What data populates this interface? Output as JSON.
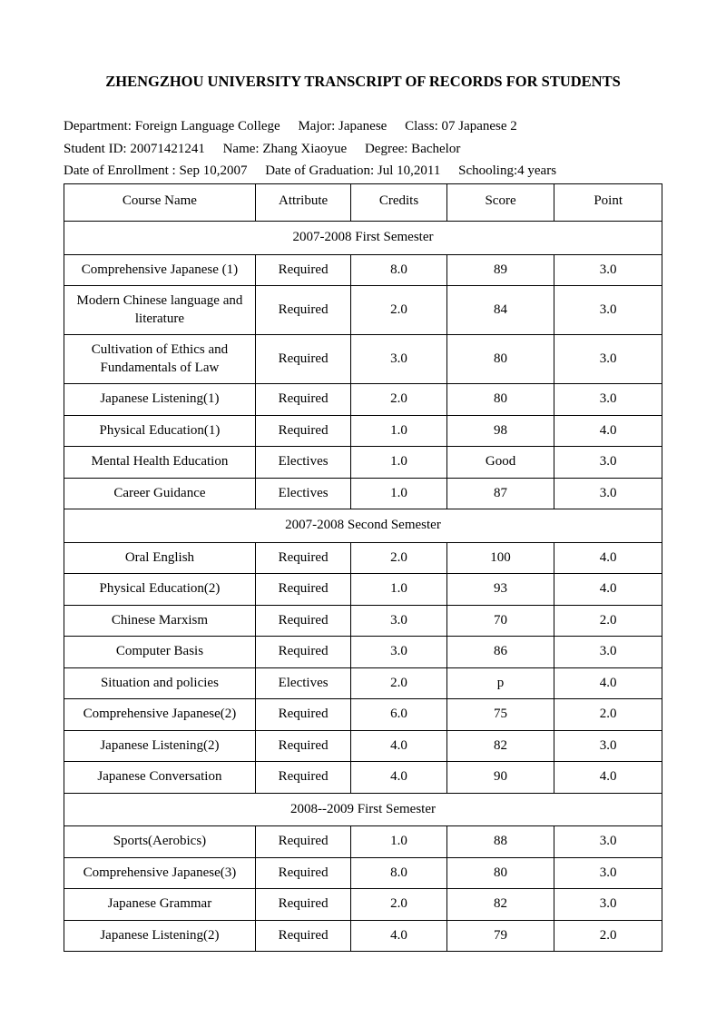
{
  "title": "ZHENGZHOU UNIVERSITY TRANSCRIPT OF RECORDS FOR STUDENTS",
  "info": {
    "line1": {
      "department": "Department: Foreign Language College",
      "major": "Major: Japanese",
      "class": "Class: 07 Japanese 2"
    },
    "line2": {
      "student_id": "Student ID: 20071421241",
      "name": "Name: Zhang Xiaoyue",
      "degree": "Degree: Bachelor"
    },
    "line3": {
      "enrollment": "Date of Enrollment : Sep 10,2007",
      "graduation": "Date of Graduation: Jul 10,2011",
      "schooling": "Schooling:4 years"
    }
  },
  "columns": [
    "Course Name",
    "Attribute",
    "Credits",
    "Score",
    "Point"
  ],
  "sections": [
    {
      "label": "2007-2008 First Semester",
      "rows": [
        [
          "Comprehensive Japanese (1)",
          "Required",
          "8.0",
          "89",
          "3.0"
        ],
        [
          "Modern Chinese language and literature",
          "Required",
          "2.0",
          "84",
          "3.0"
        ],
        [
          "Cultivation of Ethics and Fundamentals of Law",
          "Required",
          "3.0",
          "80",
          "3.0"
        ],
        [
          "Japanese Listening(1)",
          "Required",
          "2.0",
          "80",
          "3.0"
        ],
        [
          "Physical Education(1)",
          "Required",
          "1.0",
          "98",
          "4.0"
        ],
        [
          "Mental Health Education",
          "Electives",
          "1.0",
          "Good",
          "3.0"
        ],
        [
          "Career Guidance",
          "Electives",
          "1.0",
          "87",
          "3.0"
        ]
      ]
    },
    {
      "label": "2007-2008 Second Semester",
      "rows": [
        [
          "Oral English",
          "Required",
          "2.0",
          "100",
          "4.0"
        ],
        [
          "Physical Education(2)",
          "Required",
          "1.0",
          "93",
          "4.0"
        ],
        [
          "Chinese Marxism",
          "Required",
          "3.0",
          "70",
          "2.0"
        ],
        [
          "Computer Basis",
          "Required",
          "3.0",
          "86",
          "3.0"
        ],
        [
          "Situation and policies",
          "Electives",
          "2.0",
          "p",
          "4.0"
        ],
        [
          "Comprehensive Japanese(2)",
          "Required",
          "6.0",
          "75",
          "2.0"
        ],
        [
          "Japanese Listening(2)",
          "Required",
          "4.0",
          "82",
          "3.0"
        ],
        [
          "Japanese Conversation",
          "Required",
          "4.0",
          "90",
          "4.0"
        ]
      ]
    },
    {
      "label": "2008--2009 First Semester",
      "rows": [
        [
          "Sports(Aerobics)",
          "Required",
          "1.0",
          "88",
          "3.0"
        ],
        [
          "Comprehensive Japanese(3)",
          "Required",
          "8.0",
          "80",
          "3.0"
        ],
        [
          "Japanese Grammar",
          "Required",
          "2.0",
          "82",
          "3.0"
        ],
        [
          "Japanese Listening(2)",
          "Required",
          "4.0",
          "79",
          "2.0"
        ]
      ]
    }
  ]
}
